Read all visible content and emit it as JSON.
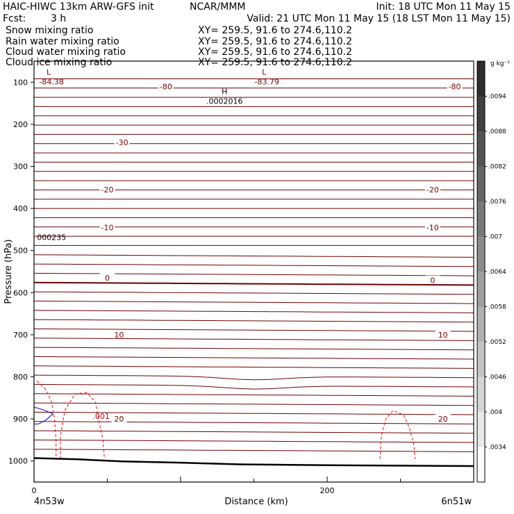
{
  "header": {
    "title": "HAIC-HIWC 13km ARW-GFS init",
    "org": "NCAR/MMM",
    "init": "Init: 18 UTC Mon 11 May 15",
    "fcst_label": "Fcst:",
    "fcst_value": "3 h",
    "valid": "Valid: 21 UTC Mon 11 May 15 (18 LST Mon 11 May 15)"
  },
  "fields": [
    {
      "name": "Snow mixing ratio",
      "xy": "XY= 259.5, 91.6 to 274.6,110.2",
      "color": "#000000"
    },
    {
      "name": "Rain water mixing ratio",
      "xy": "XY= 259.5, 91.6 to 274.6,110.2",
      "color": "#ff0000"
    },
    {
      "name": "Cloud water mixing ratio",
      "xy": "XY= 259.5, 91.6 to 274.6,110.2",
      "color": "#0000cc"
    },
    {
      "name": "Cloud ice mixing ratio",
      "xy": "XY= 259.5, 91.6 to 274.6,110.2",
      "color": "#000000"
    }
  ],
  "colorbar": {
    "unit": "g kg⁻¹",
    "labels": [
      ".0094",
      ".0088",
      ".0082",
      ".0076",
      ".007",
      ".0064",
      ".0058",
      ".0052",
      ".0046",
      ".004",
      ".0034"
    ]
  },
  "chart_data": {
    "type": "line",
    "title": "",
    "xlabel": "Distance (km)",
    "ylabel": "Pressure (hPa)",
    "xlim": [
      0,
      300
    ],
    "ylim": [
      1050,
      50
    ],
    "x_ticks": [
      0,
      200
    ],
    "y_ticks": [
      100,
      200,
      300,
      400,
      500,
      600,
      700,
      800,
      900,
      1000
    ],
    "x_end_labels": {
      "left": "4n53w",
      "right": "6n51w"
    },
    "temperature_contours": [
      {
        "label": "-80",
        "p": 110
      },
      {
        "label": "-30",
        "p": 243
      },
      {
        "label": "-20",
        "p": 355
      },
      {
        "label": "-10",
        "p": 445
      },
      {
        "label": "0",
        "p": 570
      },
      {
        "label": "10",
        "p": 700
      },
      {
        "label": "20",
        "p": 900
      }
    ],
    "contour_labels": [
      {
        "text": "-80",
        "x": 90,
        "p": 110
      },
      {
        "text": "-80",
        "x": 287,
        "p": 110
      },
      {
        "text": "-30",
        "x": 60,
        "p": 243
      },
      {
        "text": "-20",
        "x": 50,
        "p": 355
      },
      {
        "text": "-20",
        "x": 272,
        "p": 355
      },
      {
        "text": "-10",
        "x": 50,
        "p": 445
      },
      {
        "text": "-10",
        "x": 272,
        "p": 445
      },
      {
        "text": "0",
        "x": 50,
        "p": 565
      },
      {
        "text": "0",
        "x": 272,
        "p": 571
      },
      {
        "text": "10",
        "x": 58,
        "p": 700
      },
      {
        "text": "10",
        "x": 279,
        "p": 700
      },
      {
        "text": "20",
        "x": 58,
        "p": 900
      },
      {
        "text": "20",
        "x": 279,
        "p": 900
      }
    ],
    "extrema": [
      {
        "type": "L",
        "x": 10,
        "p": 82,
        "value": "-84.38"
      },
      {
        "type": "L",
        "x": 157,
        "p": 82,
        "value": "-83.79"
      },
      {
        "type": "H",
        "x": 130,
        "p": 128,
        "value": ".0002016"
      }
    ],
    "rain_labels": [
      {
        "text": ".001",
        "x": 40,
        "p": 893
      },
      {
        "text": "000235",
        "x": 2,
        "p": 468
      }
    ]
  }
}
